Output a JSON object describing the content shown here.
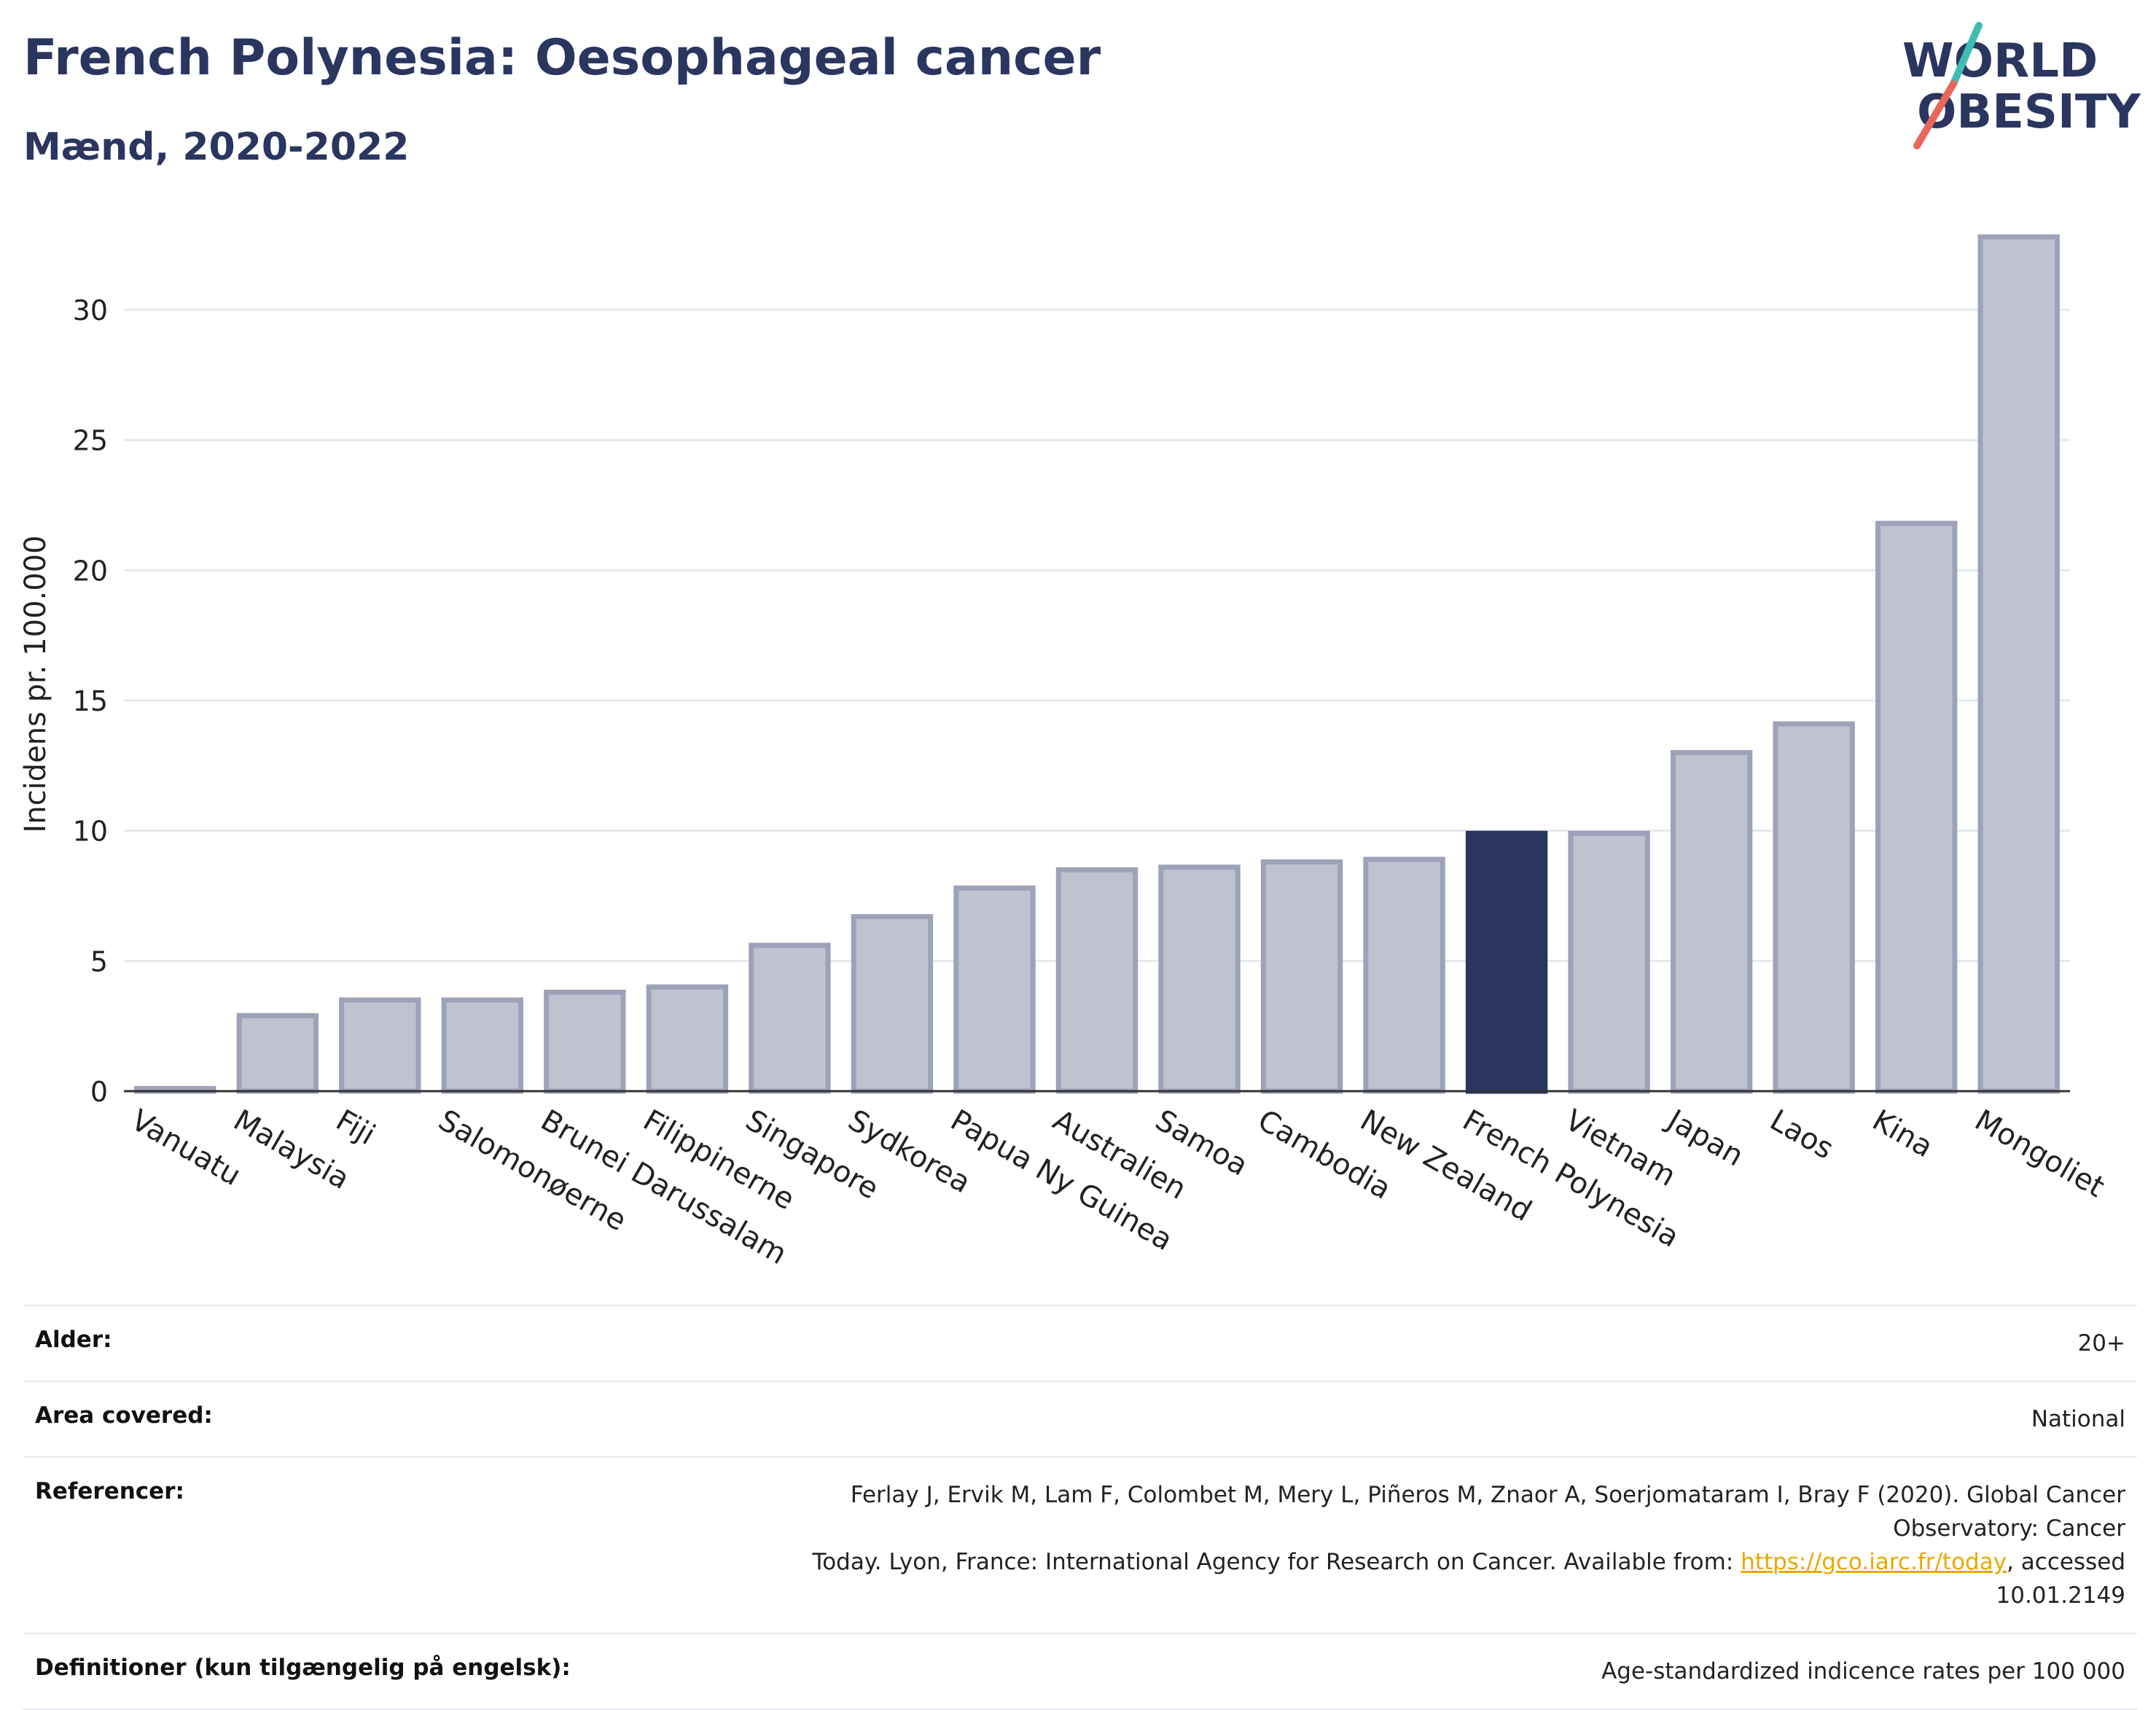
{
  "header": {
    "title": "French Polynesia: Oesophageal cancer",
    "subtitle": "Mænd, 2020-2022"
  },
  "logo": {
    "line1": "WORLD",
    "line2": "OBESITY",
    "accent_colors": [
      "#3ebdb5",
      "#e8665a"
    ]
  },
  "chart_data": {
    "type": "bar",
    "categories": [
      "Vanuatu",
      "Malaysia",
      "Fiji",
      "Salomonøerne",
      "Brunei Darussalam",
      "Filippinerne",
      "Singapore",
      "Sydkorea",
      "Papua Ny Guinea",
      "Australien",
      "Samoa",
      "Cambodia",
      "New Zealand",
      "French Polynesia",
      "Vietnam",
      "Japan",
      "Laos",
      "Kina",
      "Mongoliet"
    ],
    "values": [
      0.1,
      2.9,
      3.5,
      3.5,
      3.8,
      4.0,
      5.6,
      6.7,
      7.8,
      8.5,
      8.6,
      8.8,
      8.9,
      9.9,
      9.9,
      13.0,
      14.1,
      21.8,
      32.8
    ],
    "highlight": "French Polynesia",
    "ylabel": "Incidens pr. 100.000",
    "xlabel": "",
    "ylim": [
      0,
      33.5
    ],
    "yticks": [
      0,
      5,
      10,
      15,
      20,
      25,
      30
    ],
    "grid": true,
    "colors": {
      "bar_fill": "#bfc2cf",
      "bar_stroke": "#9da2b8",
      "highlight": "#2a3560",
      "grid": "#e6e8ee",
      "axis": "#333333"
    }
  },
  "meta": [
    {
      "label": "Alder:",
      "value": "20+"
    },
    {
      "label": "Area covered:",
      "value": "National"
    },
    {
      "label": "Referencer:",
      "value_line1": "Ferlay J, Ervik M, Lam F, Colombet M, Mery L, Piñeros M, Znaor A, Soerjomataram I, Bray F (2020). Global Cancer Observatory: Cancer",
      "value_line2_pre": "Today. Lyon, France: International Agency for Research on Cancer. Available from: ",
      "link": "https://gco.iarc.fr/today",
      "value_line2_post": ", accessed 10.01.2149"
    },
    {
      "label": "Definitioner (kun tilgængelig på engelsk):",
      "value": "Age-standardized indicence rates per 100 000"
    }
  ]
}
